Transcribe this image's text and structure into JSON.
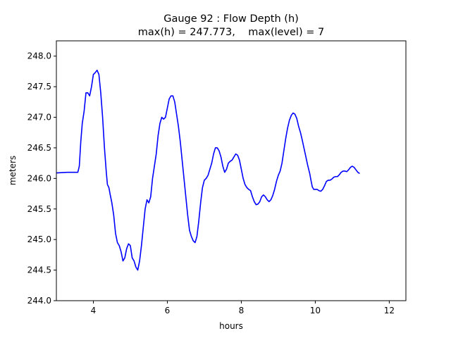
{
  "chart_data": {
    "type": "line",
    "title_line1": "Gauge 92 : Flow Depth (h)",
    "title_line2": "max(h) = 247.773,    max(level) = 7",
    "xlabel": "hours",
    "ylabel": "meters",
    "xlim": [
      3.0,
      12.45
    ],
    "ylim": [
      244.0,
      248.25
    ],
    "x_ticks": [
      4,
      6,
      8,
      10,
      12
    ],
    "y_ticks": [
      244.0,
      244.5,
      245.0,
      245.5,
      246.0,
      246.5,
      247.0,
      247.5,
      248.0
    ],
    "x_tick_labels": [
      "4",
      "6",
      "8",
      "10",
      "12"
    ],
    "y_tick_labels": [
      "244.0",
      "244.5",
      "245.0",
      "245.5",
      "246.0",
      "246.5",
      "247.0",
      "247.5",
      "248.0"
    ],
    "grid": false,
    "series": [
      {
        "color": "#0000ff",
        "points": [
          [
            3.0,
            246.09
          ],
          [
            3.3,
            246.1
          ],
          [
            3.5,
            246.1
          ],
          [
            3.58,
            246.1
          ],
          [
            3.62,
            246.2
          ],
          [
            3.66,
            246.6
          ],
          [
            3.7,
            246.9
          ],
          [
            3.75,
            247.1
          ],
          [
            3.8,
            247.4
          ],
          [
            3.85,
            247.4
          ],
          [
            3.9,
            247.35
          ],
          [
            3.95,
            247.5
          ],
          [
            4.0,
            247.7
          ],
          [
            4.05,
            247.73
          ],
          [
            4.1,
            247.77
          ],
          [
            4.15,
            247.7
          ],
          [
            4.2,
            247.4
          ],
          [
            4.25,
            247.0
          ],
          [
            4.3,
            246.5
          ],
          [
            4.35,
            246.1
          ],
          [
            4.38,
            245.9
          ],
          [
            4.42,
            245.85
          ],
          [
            4.45,
            245.75
          ],
          [
            4.5,
            245.6
          ],
          [
            4.55,
            245.4
          ],
          [
            4.6,
            245.1
          ],
          [
            4.65,
            244.95
          ],
          [
            4.7,
            244.9
          ],
          [
            4.75,
            244.8
          ],
          [
            4.8,
            244.65
          ],
          [
            4.85,
            244.7
          ],
          [
            4.9,
            244.85
          ],
          [
            4.95,
            244.93
          ],
          [
            5.0,
            244.9
          ],
          [
            5.05,
            244.7
          ],
          [
            5.1,
            244.65
          ],
          [
            5.15,
            244.55
          ],
          [
            5.2,
            244.5
          ],
          [
            5.25,
            244.65
          ],
          [
            5.3,
            244.9
          ],
          [
            5.35,
            245.2
          ],
          [
            5.4,
            245.5
          ],
          [
            5.45,
            245.65
          ],
          [
            5.5,
            245.6
          ],
          [
            5.55,
            245.7
          ],
          [
            5.6,
            246.0
          ],
          [
            5.65,
            246.2
          ],
          [
            5.7,
            246.4
          ],
          [
            5.75,
            246.7
          ],
          [
            5.8,
            246.9
          ],
          [
            5.85,
            247.0
          ],
          [
            5.9,
            246.97
          ],
          [
            5.95,
            247.0
          ],
          [
            6.0,
            247.15
          ],
          [
            6.05,
            247.3
          ],
          [
            6.1,
            247.35
          ],
          [
            6.15,
            247.35
          ],
          [
            6.2,
            247.25
          ],
          [
            6.25,
            247.05
          ],
          [
            6.3,
            246.85
          ],
          [
            6.35,
            246.6
          ],
          [
            6.4,
            246.3
          ],
          [
            6.45,
            246.0
          ],
          [
            6.5,
            245.7
          ],
          [
            6.55,
            245.4
          ],
          [
            6.6,
            245.15
          ],
          [
            6.65,
            245.05
          ],
          [
            6.7,
            244.98
          ],
          [
            6.75,
            244.95
          ],
          [
            6.8,
            245.05
          ],
          [
            6.85,
            245.3
          ],
          [
            6.9,
            245.6
          ],
          [
            6.95,
            245.85
          ],
          [
            7.0,
            245.97
          ],
          [
            7.05,
            246.0
          ],
          [
            7.1,
            246.05
          ],
          [
            7.15,
            246.15
          ],
          [
            7.2,
            246.25
          ],
          [
            7.25,
            246.4
          ],
          [
            7.3,
            246.5
          ],
          [
            7.35,
            246.5
          ],
          [
            7.4,
            246.45
          ],
          [
            7.45,
            246.35
          ],
          [
            7.5,
            246.2
          ],
          [
            7.55,
            246.1
          ],
          [
            7.6,
            246.15
          ],
          [
            7.65,
            246.25
          ],
          [
            7.7,
            246.28
          ],
          [
            7.75,
            246.3
          ],
          [
            7.8,
            246.35
          ],
          [
            7.85,
            246.4
          ],
          [
            7.9,
            246.38
          ],
          [
            7.95,
            246.3
          ],
          [
            8.0,
            246.15
          ],
          [
            8.05,
            246.0
          ],
          [
            8.1,
            245.9
          ],
          [
            8.15,
            245.85
          ],
          [
            8.2,
            245.82
          ],
          [
            8.25,
            245.8
          ],
          [
            8.3,
            245.7
          ],
          [
            8.35,
            245.62
          ],
          [
            8.4,
            245.57
          ],
          [
            8.45,
            245.58
          ],
          [
            8.5,
            245.62
          ],
          [
            8.55,
            245.7
          ],
          [
            8.6,
            245.73
          ],
          [
            8.65,
            245.7
          ],
          [
            8.7,
            245.65
          ],
          [
            8.75,
            245.62
          ],
          [
            8.8,
            245.65
          ],
          [
            8.85,
            245.72
          ],
          [
            8.9,
            245.82
          ],
          [
            8.95,
            245.95
          ],
          [
            9.0,
            246.05
          ],
          [
            9.05,
            246.12
          ],
          [
            9.1,
            246.25
          ],
          [
            9.15,
            246.45
          ],
          [
            9.2,
            246.65
          ],
          [
            9.25,
            246.82
          ],
          [
            9.3,
            246.95
          ],
          [
            9.35,
            247.03
          ],
          [
            9.4,
            247.07
          ],
          [
            9.45,
            247.05
          ],
          [
            9.5,
            246.98
          ],
          [
            9.55,
            246.85
          ],
          [
            9.6,
            246.75
          ],
          [
            9.65,
            246.62
          ],
          [
            9.7,
            246.48
          ],
          [
            9.75,
            246.34
          ],
          [
            9.8,
            246.2
          ],
          [
            9.85,
            246.08
          ],
          [
            9.88,
            245.98
          ],
          [
            9.92,
            245.86
          ],
          [
            9.96,
            245.82
          ],
          [
            10.0,
            245.82
          ],
          [
            10.05,
            245.82
          ],
          [
            10.1,
            245.8
          ],
          [
            10.15,
            245.79
          ],
          [
            10.2,
            245.82
          ],
          [
            10.25,
            245.88
          ],
          [
            10.3,
            245.95
          ],
          [
            10.35,
            245.97
          ],
          [
            10.4,
            245.97
          ],
          [
            10.45,
            245.99
          ],
          [
            10.5,
            246.02
          ],
          [
            10.55,
            246.03
          ],
          [
            10.6,
            246.03
          ],
          [
            10.65,
            246.06
          ],
          [
            10.7,
            246.1
          ],
          [
            10.75,
            246.12
          ],
          [
            10.8,
            246.12
          ],
          [
            10.85,
            246.11
          ],
          [
            10.9,
            246.14
          ],
          [
            10.95,
            246.18
          ],
          [
            11.0,
            246.2
          ],
          [
            11.05,
            246.18
          ],
          [
            11.1,
            246.14
          ],
          [
            11.15,
            246.1
          ],
          [
            11.2,
            246.08
          ]
        ]
      }
    ]
  }
}
